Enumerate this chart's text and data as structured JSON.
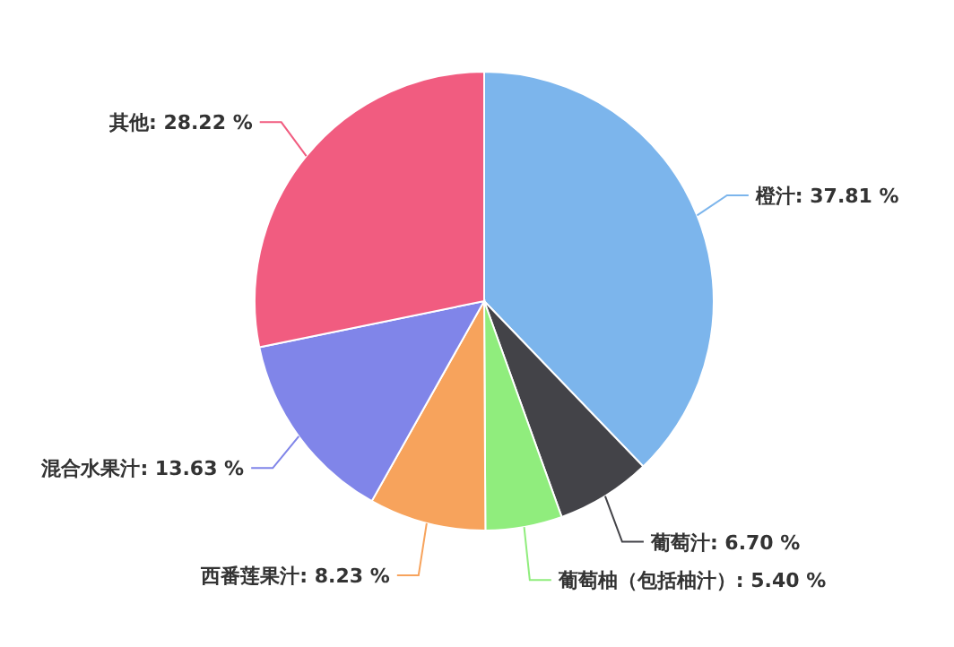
{
  "chart_data": {
    "type": "pie",
    "categories": [
      "橙汁",
      "葡萄汁",
      "葡萄柚（包括柚汁）",
      "西番莲果汁",
      "混合水果汁",
      "其他"
    ],
    "values": [
      37.81,
      6.7,
      5.4,
      8.23,
      13.63,
      28.22
    ],
    "value_labels": [
      "37.81 %",
      "6.70 %",
      "5.40 %",
      "8.23 %",
      "13.63 %",
      "28.22 %"
    ],
    "colors": [
      "#7cb5ec",
      "#434348",
      "#90ed7d",
      "#f7a35c",
      "#8085e9",
      "#f15c80"
    ]
  }
}
